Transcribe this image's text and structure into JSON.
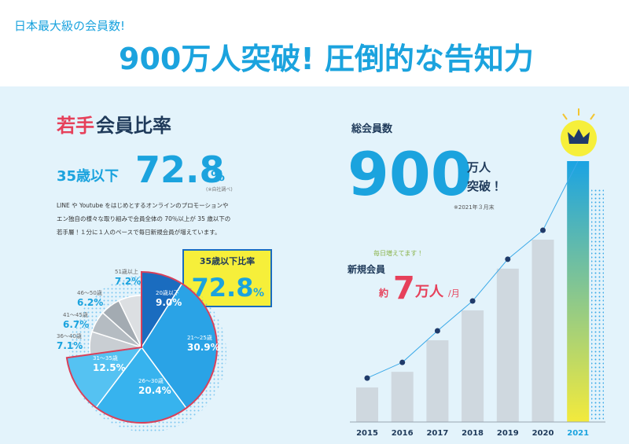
{
  "header": {
    "subtitle": "日本最大級の会員数!",
    "title": "900万人突破! 圧倒的な告知力"
  },
  "young": {
    "title_accent": "若手",
    "title_rest": "会員比率",
    "label": "35歳以下",
    "value": "72.8",
    "unit": "%",
    "note": "(※自社調べ)",
    "description": [
      "LINE や Youtube をはじめとするオンラインのプロモーションや",
      "エン独自の様々な取り組みで会員全体の 70％以上が 35 歳以下の",
      "若手層！１分に１人のペースで毎日新規会員が増えています。"
    ],
    "badge_label": "35歳以下比率",
    "badge_value": "72.8",
    "badge_unit": "%"
  },
  "members": {
    "label": "総会員数",
    "value": "900",
    "unit": "万人",
    "suffix": "突破！",
    "note": "※2021年３月末",
    "tag": "毎日増えてます！",
    "new_label": "新規会員",
    "approx": "約",
    "new_value": "7",
    "new_unit": "万人",
    "per": "/月"
  },
  "chart_data": [
    {
      "type": "pie",
      "categories": [
        "20歳以下",
        "21〜25歳",
        "26〜30歳",
        "31〜35歳",
        "36〜40歳",
        "41〜45歳",
        "46〜50歳",
        "51歳以上"
      ],
      "values": [
        9.0,
        30.9,
        20.4,
        12.5,
        7.1,
        6.7,
        6.2,
        7.2
      ],
      "value_labels": [
        "9.0%",
        "30.9%",
        "20.4%",
        "12.5%",
        "7.1%",
        "6.7%",
        "6.2%",
        "7.2%"
      ],
      "colors": [
        "#1a6cbf",
        "#2aa3e6",
        "#37b3ee",
        "#55c2f2",
        "#c9ced3",
        "#b5bcc2",
        "#a3abb2",
        "#dcdfe2"
      ]
    },
    {
      "type": "bar",
      "categories": [
        "2015",
        "2016",
        "2017",
        "2018",
        "2019",
        "2020",
        "2021"
      ],
      "values": [
        119,
        173,
        282,
        385,
        529,
        629,
        900
      ],
      "color": "#cfd8df",
      "highlight_colors": [
        "#1aa3e3",
        "#f3ea3c"
      ],
      "line_color": "#1f3a6a"
    }
  ]
}
